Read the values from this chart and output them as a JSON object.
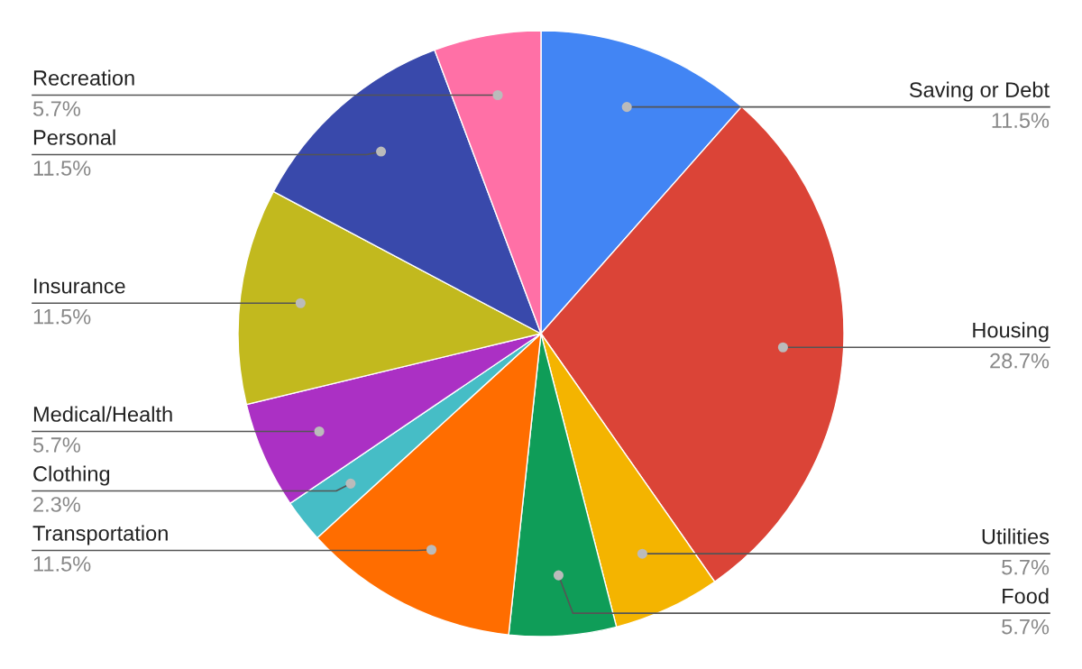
{
  "chart_data": {
    "type": "pie",
    "categories": [
      "Saving or Debt",
      "Housing",
      "Utilities",
      "Food",
      "Transportation",
      "Clothing",
      "Medical/Health",
      "Insurance",
      "Personal",
      "Recreation"
    ],
    "values": [
      11.5,
      28.7,
      5.7,
      5.7,
      11.5,
      2.3,
      5.7,
      11.5,
      11.5,
      5.7
    ],
    "value_labels": [
      "11.5%",
      "28.7%",
      "5.7%",
      "5.7%",
      "11.5%",
      "2.3%",
      "5.7%",
      "11.5%",
      "11.5%",
      "5.7%"
    ],
    "colors": [
      "#4285f4",
      "#db4437",
      "#f4b400",
      "#0f9d58",
      "#ff6d00",
      "#46bdc6",
      "#ab30c4",
      "#c2b91e",
      "#3949ab",
      "#ff70a6"
    ],
    "legend": false
  }
}
